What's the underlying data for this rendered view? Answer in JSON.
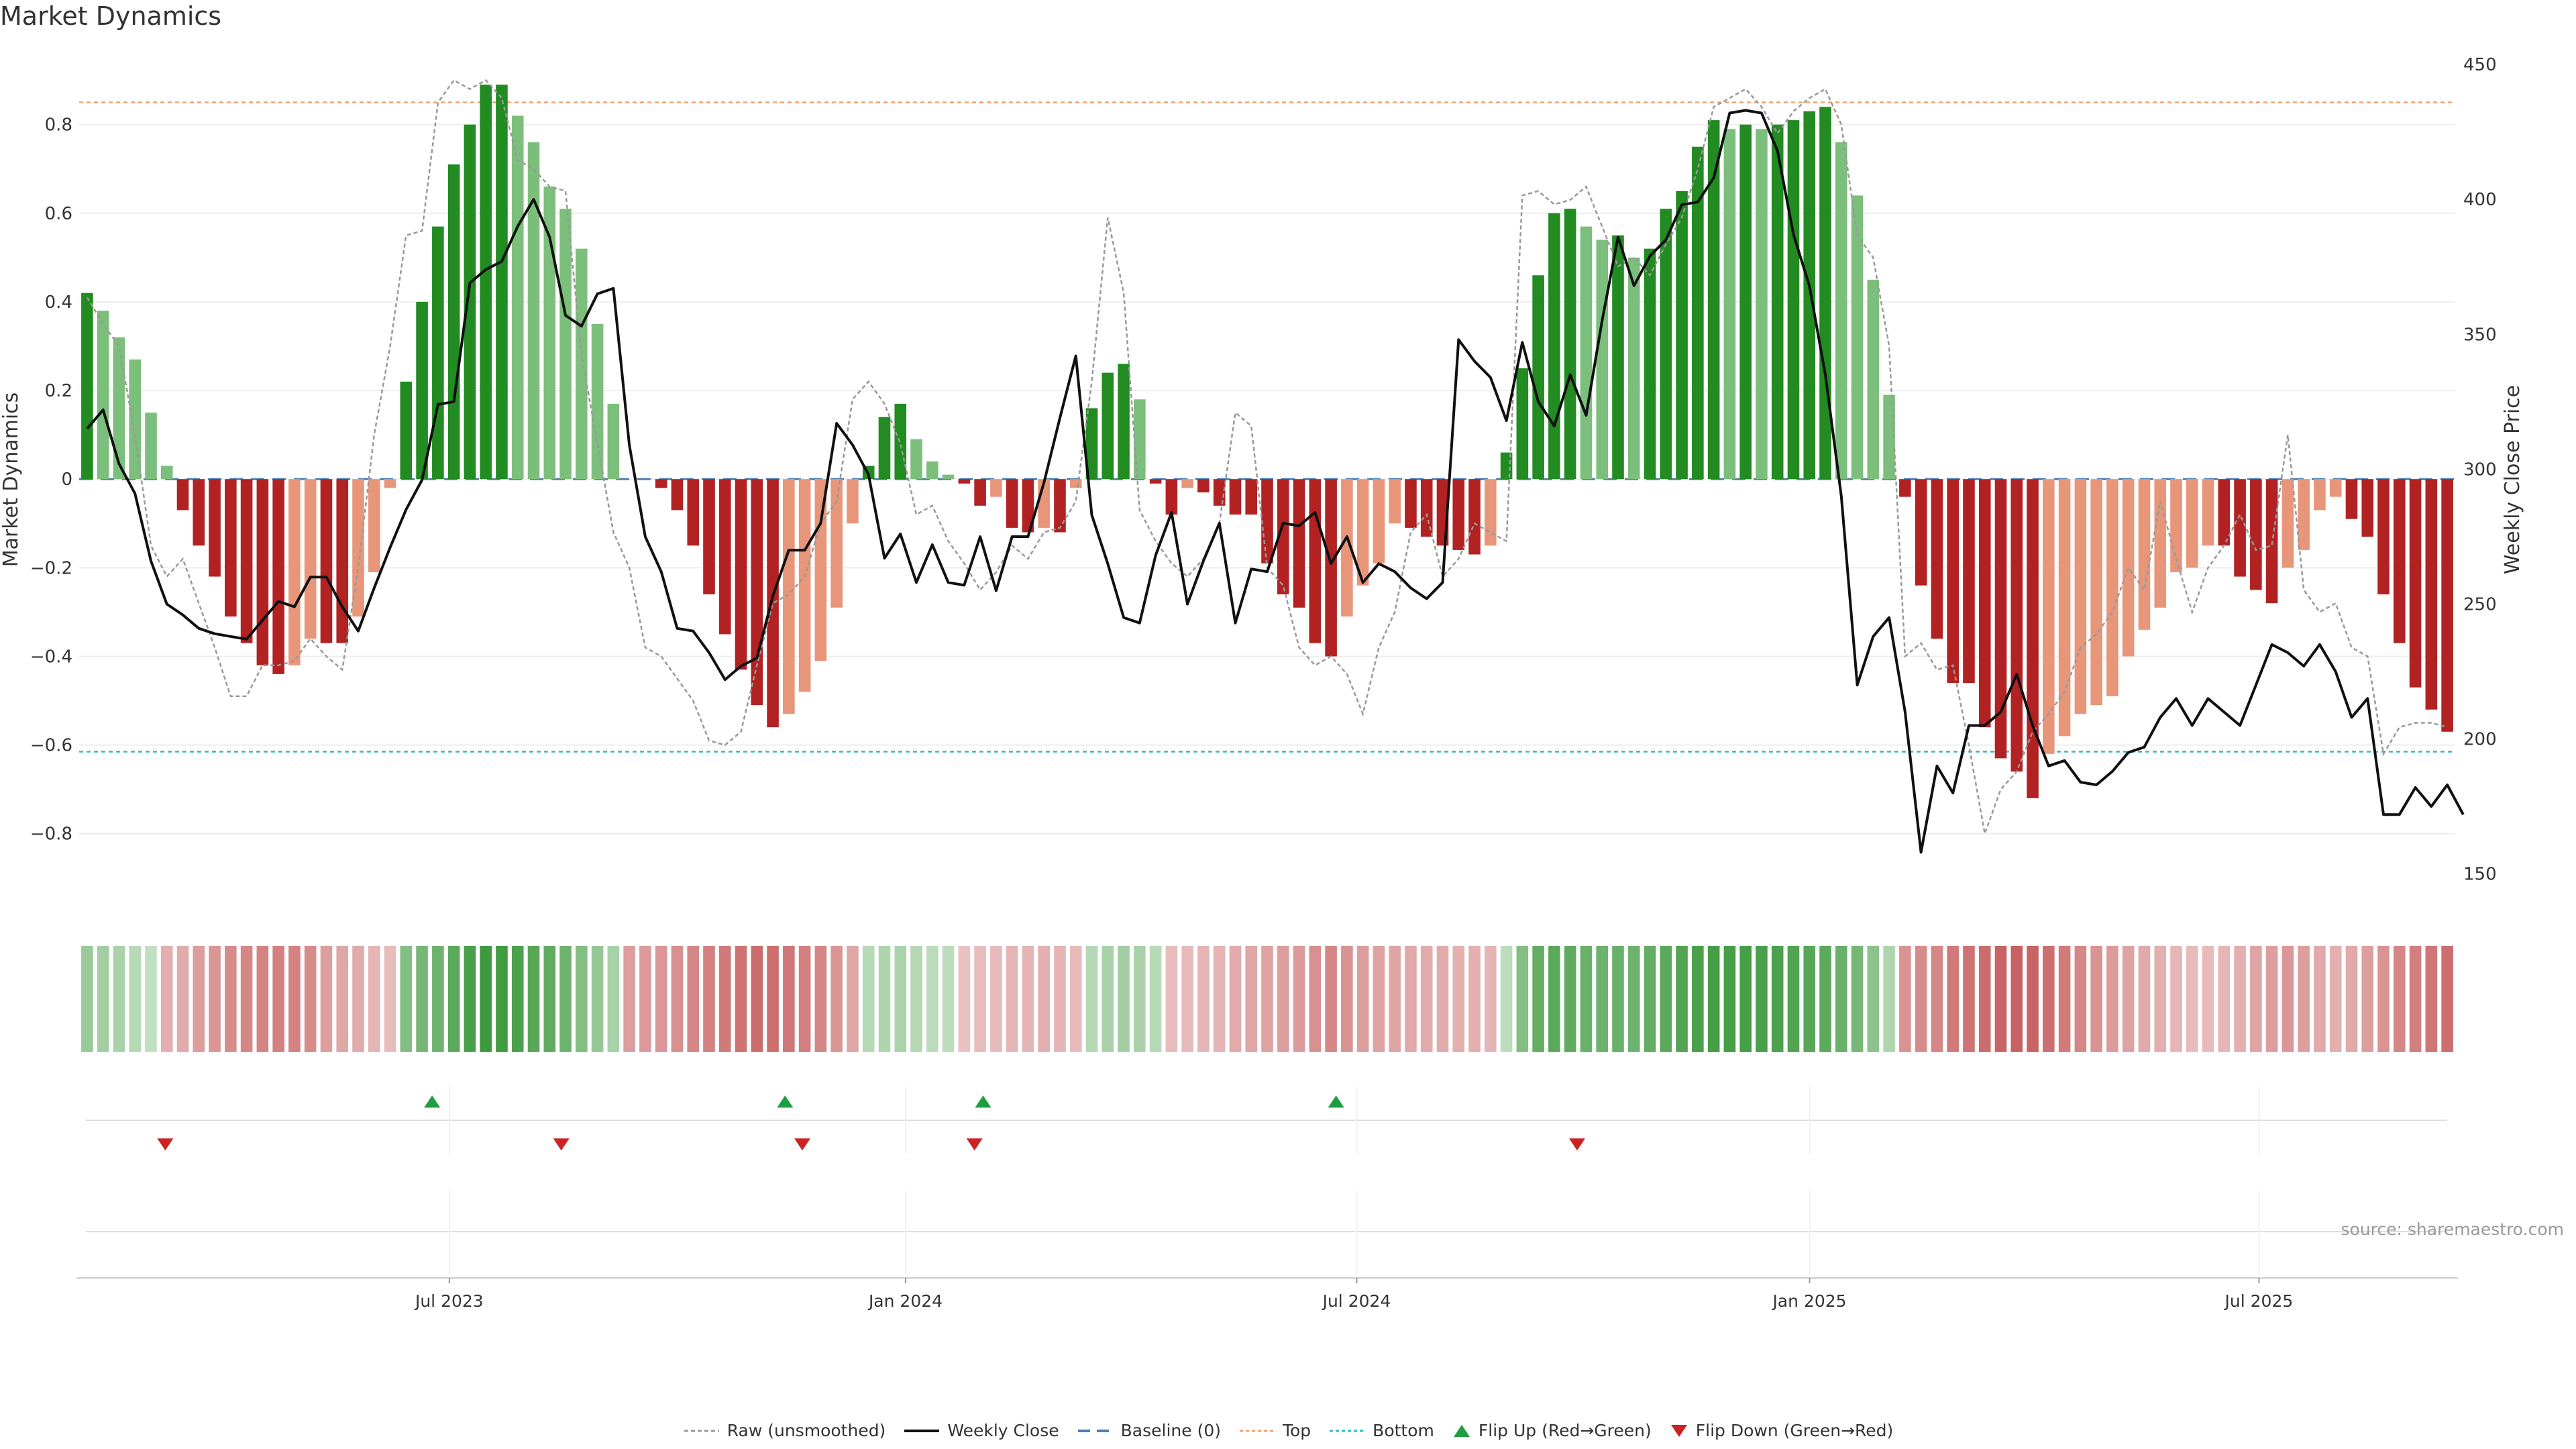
{
  "title": "Market Dynamics",
  "source_note": "source: sharemaestro.com",
  "colors": {
    "strong_green": "#228b22",
    "light_green": "#7cbf7c",
    "strong_red": "#b22222",
    "light_red": "#e8967a",
    "raw_line": "#999999",
    "close_line": "#111111",
    "baseline": "#4a7fb5",
    "top_line": "#f0a070",
    "bottom_line": "#30b8c8",
    "flip_up": "#1e9e40",
    "flip_down": "#cc2222"
  },
  "legend": [
    {
      "key": "raw",
      "label": "Raw (unsmoothed)"
    },
    {
      "key": "close",
      "label": "Weekly Close"
    },
    {
      "key": "baseline",
      "label": "Baseline (0)"
    },
    {
      "key": "top",
      "label": "Top"
    },
    {
      "key": "bottom",
      "label": "Bottom"
    },
    {
      "key": "flip_up",
      "label": "Flip Up (Red→Green)"
    },
    {
      "key": "flip_down",
      "label": "Flip Down (Green→Red)"
    }
  ],
  "chart_data": {
    "type": "bar",
    "title": "Market Dynamics",
    "ylabel": "Market Dynamics",
    "y2label": "Weekly Close Price",
    "ylim": [
      -0.97,
      0.96
    ],
    "y2lim": [
      137,
      454
    ],
    "yticks": [
      -0.8,
      -0.6,
      -0.4,
      -0.2,
      0,
      0.2,
      0.4,
      0.6,
      0.8
    ],
    "ytick_labels": [
      "−0.8",
      "−0.6",
      "−0.4",
      "−0.2",
      "0",
      "0.2",
      "0.4",
      "0.6",
      "0.8"
    ],
    "y2ticks": [
      150,
      200,
      250,
      300,
      350,
      400,
      450
    ],
    "x_labels": [
      "Jul 2023",
      "Jan 2024",
      "Jul 2024",
      "Jan 2025",
      "Jul 2025"
    ],
    "x_label_weeks": [
      21.5,
      48,
      74.2,
      100.5,
      126.6
    ],
    "top": 0.85,
    "bottom": -0.615,
    "grid": true,
    "legend_position": "bottom",
    "bars": [
      0.42,
      0.38,
      0.32,
      0.27,
      0.15,
      0.03,
      -0.07,
      -0.15,
      -0.22,
      -0.31,
      -0.37,
      -0.42,
      -0.44,
      -0.42,
      -0.36,
      -0.37,
      -0.37,
      -0.31,
      -0.21,
      -0.02,
      0.22,
      0.4,
      0.57,
      0.71,
      0.8,
      0.89,
      0.89,
      0.82,
      0.76,
      0.66,
      0.61,
      0.52,
      0.35,
      0.17,
      0,
      0,
      -0.02,
      -0.07,
      -0.15,
      -0.26,
      -0.35,
      -0.43,
      -0.51,
      -0.56,
      -0.53,
      -0.48,
      -0.41,
      -0.29,
      -0.1,
      0.03,
      0.14,
      0.17,
      0.09,
      0.04,
      0.01,
      -0.01,
      -0.06,
      -0.04,
      -0.11,
      -0.12,
      -0.11,
      -0.12,
      -0.02,
      0.16,
      0.24,
      0.26,
      0.18,
      -0.01,
      -0.08,
      -0.02,
      -0.03,
      -0.06,
      -0.08,
      -0.08,
      -0.19,
      -0.26,
      -0.29,
      -0.37,
      -0.4,
      -0.31,
      -0.24,
      -0.19,
      -0.1,
      -0.11,
      -0.13,
      -0.15,
      -0.16,
      -0.17,
      -0.15,
      0.06,
      0.25,
      0.46,
      0.6,
      0.61,
      0.57,
      0.54,
      0.55,
      0.5,
      0.52,
      0.61,
      0.65,
      0.75,
      0.81,
      0.79,
      0.8,
      0.79,
      0.8,
      0.81,
      0.83,
      0.84,
      0.76,
      0.64,
      0.45,
      0.19,
      -0.04,
      -0.24,
      -0.36,
      -0.46,
      -0.46,
      -0.56,
      -0.63,
      -0.66,
      -0.72,
      -0.62,
      -0.58,
      -0.53,
      -0.51,
      -0.49,
      -0.4,
      -0.34,
      -0.29,
      -0.21,
      -0.2,
      -0.15,
      -0.15,
      -0.22,
      -0.25,
      -0.28,
      -0.2,
      -0.16,
      -0.07,
      -0.04,
      -0.09,
      -0.13,
      -0.26,
      -0.37,
      -0.47,
      -0.52,
      -0.57
    ],
    "raw": [
      0.41,
      0.35,
      0.3,
      0.1,
      -0.15,
      -0.22,
      -0.18,
      -0.28,
      -0.38,
      -0.49,
      -0.49,
      -0.42,
      -0.42,
      -0.41,
      -0.36,
      -0.4,
      -0.43,
      -0.2,
      0.1,
      0.3,
      0.55,
      0.56,
      0.85,
      0.9,
      0.88,
      0.9,
      0.86,
      0.72,
      0.7,
      0.66,
      0.65,
      0.28,
      0.08,
      -0.12,
      -0.2,
      -0.38,
      -0.4,
      -0.45,
      -0.5,
      -0.59,
      -0.6,
      -0.57,
      -0.42,
      -0.28,
      -0.26,
      -0.22,
      -0.1,
      -0.05,
      0.18,
      0.22,
      0.17,
      0.08,
      -0.08,
      -0.06,
      -0.14,
      -0.19,
      -0.25,
      -0.21,
      -0.15,
      -0.18,
      -0.12,
      -0.11,
      -0.05,
      0.22,
      0.59,
      0.42,
      -0.07,
      -0.14,
      -0.19,
      -0.22,
      -0.18,
      -0.1,
      0.15,
      0.12,
      -0.2,
      -0.24,
      -0.38,
      -0.42,
      -0.4,
      -0.44,
      -0.53,
      -0.38,
      -0.3,
      -0.12,
      -0.08,
      -0.22,
      -0.18,
      -0.1,
      -0.12,
      -0.14,
      0.64,
      0.65,
      0.62,
      0.63,
      0.66,
      0.57,
      0.48,
      0.5,
      0.46,
      0.53,
      0.59,
      0.7,
      0.84,
      0.86,
      0.88,
      0.84,
      0.78,
      0.83,
      0.86,
      0.88,
      0.8,
      0.55,
      0.5,
      0.3,
      -0.4,
      -0.37,
      -0.43,
      -0.42,
      -0.6,
      -0.8,
      -0.7,
      -0.66,
      -0.57,
      -0.53,
      -0.48,
      -0.38,
      -0.35,
      -0.3,
      -0.2,
      -0.25,
      -0.05,
      -0.18,
      -0.3,
      -0.2,
      -0.15,
      -0.08,
      -0.16,
      -0.15,
      0.1,
      -0.25,
      -0.3,
      -0.28,
      -0.38,
      -0.4,
      -0.62,
      -0.56,
      -0.55,
      -0.55,
      -0.56
    ],
    "close": [
      315,
      322,
      302,
      291,
      266,
      250,
      246,
      241,
      239,
      238,
      237,
      244,
      251,
      249,
      260,
      260,
      249,
      240,
      256,
      271,
      285,
      296,
      324,
      325,
      369,
      374,
      377,
      390,
      400,
      386,
      357,
      353,
      365,
      367,
      309,
      275,
      262,
      241,
      240,
      232,
      222,
      227,
      230,
      253,
      270,
      270,
      280,
      317,
      309,
      298,
      267,
      276,
      258,
      272,
      258,
      257,
      275,
      255,
      275,
      275,
      295,
      319,
      342,
      283,
      265,
      245,
      243,
      268,
      284,
      250,
      266,
      280,
      243,
      263,
      262,
      280,
      279,
      284,
      265,
      275,
      258,
      265,
      262,
      256,
      252,
      258,
      348,
      340,
      334,
      318,
      347,
      325,
      316,
      335,
      320,
      355,
      386,
      368,
      379,
      385,
      398,
      399,
      408,
      432,
      433,
      432,
      418,
      387,
      368,
      335,
      290,
      220,
      238,
      245,
      210,
      158,
      190,
      180,
      205,
      205,
      210,
      224,
      205,
      190,
      192,
      184,
      183,
      188,
      195,
      197,
      208,
      215,
      205,
      215,
      210,
      205,
      220,
      235,
      232,
      227,
      235,
      225,
      208,
      215,
      172,
      172,
      182,
      175,
      183,
      172
    ]
  },
  "flips": {
    "up": [
      20.5,
      41,
      52.5,
      73
    ],
    "down": [
      5,
      28,
      42,
      52,
      87
    ]
  },
  "strip": [
    0.32,
    0.28,
    0.24,
    0.16,
    0.1,
    -0.2,
    -0.22,
    -0.3,
    -0.35,
    -0.4,
    -0.42,
    -0.45,
    -0.46,
    -0.46,
    -0.4,
    -0.3,
    -0.25,
    -0.22,
    -0.18,
    -0.12,
    0.45,
    0.52,
    0.58,
    0.68,
    0.78,
    0.84,
    0.82,
    0.76,
    0.7,
    0.65,
    0.58,
    0.45,
    0.35,
    0.25,
    -0.3,
    -0.32,
    -0.34,
    -0.38,
    -0.42,
    -0.46,
    -0.5,
    -0.55,
    -0.58,
    -0.56,
    -0.52,
    -0.48,
    -0.42,
    -0.35,
    -0.25,
    0.16,
    0.2,
    0.22,
    0.18,
    0.14,
    0.12,
    -0.1,
    -0.12,
    -0.14,
    -0.16,
    -0.18,
    -0.2,
    -0.18,
    -0.14,
    0.18,
    0.24,
    0.28,
    0.24,
    0.16,
    -0.12,
    -0.14,
    -0.16,
    -0.18,
    -0.22,
    -0.25,
    -0.28,
    -0.3,
    -0.32,
    -0.38,
    -0.42,
    -0.36,
    -0.3,
    -0.28,
    -0.26,
    -0.24,
    -0.22,
    -0.22,
    -0.2,
    -0.2,
    -0.18,
    0.12,
    0.45,
    0.62,
    0.68,
    0.66,
    0.6,
    0.58,
    0.6,
    0.58,
    0.62,
    0.68,
    0.72,
    0.78,
    0.8,
    0.8,
    0.8,
    0.78,
    0.76,
    0.74,
    0.7,
    0.68,
    0.6,
    0.52,
    0.4,
    0.2,
    -0.36,
    -0.4,
    -0.44,
    -0.5,
    -0.54,
    -0.58,
    -0.62,
    -0.64,
    -0.62,
    -0.56,
    -0.5,
    -0.42,
    -0.36,
    -0.32,
    -0.28,
    -0.24,
    -0.2,
    -0.16,
    -0.14,
    -0.14,
    -0.16,
    -0.2,
    -0.26,
    -0.3,
    -0.34,
    -0.3,
    -0.24,
    -0.2,
    -0.24,
    -0.3,
    -0.36,
    -0.42,
    -0.48,
    -0.52,
    -0.56
  ]
}
